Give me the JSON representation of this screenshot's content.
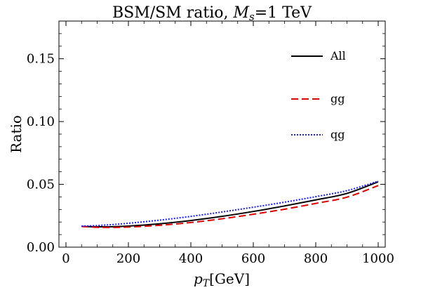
{
  "chart_data": {
    "type": "line",
    "title": {
      "prefix": "BSM/SM ratio, ",
      "var": "M",
      "var_sub": "s",
      "suffix": "=1 TeV"
    },
    "xlabel": {
      "var": "p",
      "var_sub": "T",
      "unit": "[GeV]"
    },
    "ylabel": "Ratio",
    "xlim": [
      0,
      1000
    ],
    "ylim": [
      0,
      0.18
    ],
    "xticks": [
      {
        "value": 0,
        "label": "0"
      },
      {
        "value": 200,
        "label": "200"
      },
      {
        "value": 400,
        "label": "400"
      },
      {
        "value": 600,
        "label": "600"
      },
      {
        "value": 800,
        "label": "800"
      },
      {
        "value": 1000,
        "label": "1000"
      }
    ],
    "yticks": [
      {
        "value": 0.0,
        "label": "0.00"
      },
      {
        "value": 0.05,
        "label": "0.05"
      },
      {
        "value": 0.1,
        "label": "0.10"
      },
      {
        "value": 0.15,
        "label": "0.15"
      }
    ],
    "grid": false,
    "legend_position": "top-right",
    "series": [
      {
        "name": "All",
        "color": "#000000",
        "style": "solid",
        "x": [
          50,
          100,
          150,
          200,
          300,
          400,
          500,
          600,
          700,
          800,
          900,
          1000
        ],
        "y": [
          0.0165,
          0.0162,
          0.0163,
          0.0168,
          0.0186,
          0.0212,
          0.0245,
          0.0284,
          0.0328,
          0.0376,
          0.0428,
          0.052
        ]
      },
      {
        "name": "gg",
        "color": "#dd0000",
        "style": "dashed",
        "x": [
          50,
          100,
          150,
          200,
          300,
          400,
          500,
          600,
          700,
          800,
          900,
          1000
        ],
        "y": [
          0.0165,
          0.0158,
          0.0157,
          0.016,
          0.0174,
          0.0196,
          0.0226,
          0.0262,
          0.0302,
          0.0348,
          0.0398,
          0.049
        ]
      },
      {
        "name": "qg",
        "color": "#1a1aff",
        "style": "dotted",
        "x": [
          50,
          100,
          150,
          200,
          300,
          400,
          500,
          600,
          700,
          800,
          900,
          1000
        ],
        "y": [
          0.0167,
          0.0172,
          0.018,
          0.019,
          0.0215,
          0.0245,
          0.028,
          0.0318,
          0.0358,
          0.0402,
          0.045,
          0.0525
        ]
      }
    ]
  }
}
